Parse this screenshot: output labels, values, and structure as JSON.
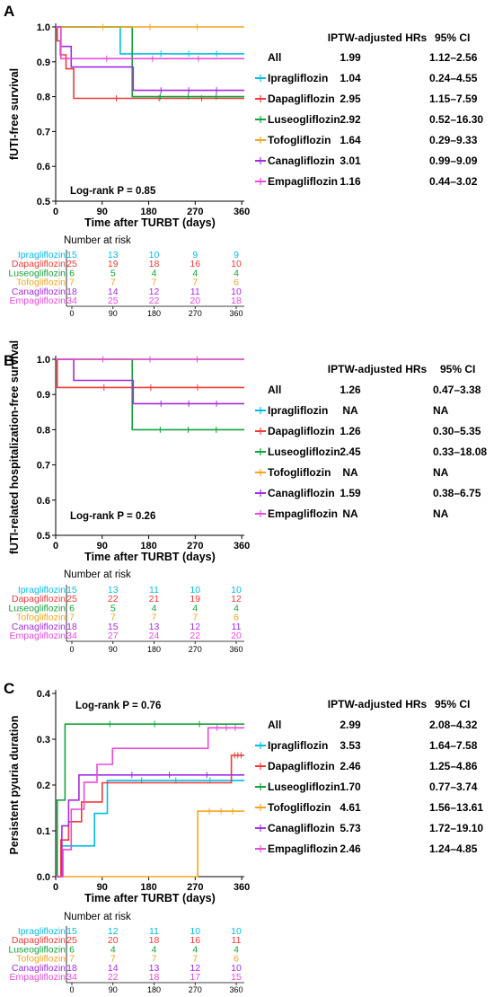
{
  "colors": {
    "Ipragliflozin": "#00bde6",
    "Dapagliflozin": "#ee3a3a",
    "Luseogliflozin": "#13a33b",
    "Tofogliflozin": "#f2a51e",
    "Canagliflozin": "#a32be0",
    "Empagliflozin": "#e84ad9"
  },
  "chart_data": [
    {
      "type": "line",
      "panel": "A",
      "ylabel": "fUTI-free survival",
      "xlabel": "Time after TURBT (days)",
      "ylim": [
        0.5,
        1.0
      ],
      "yticks": [
        "0.5",
        "0.6",
        "0.7",
        "0.8",
        "0.9",
        "1.0"
      ],
      "xlim": [
        0,
        365
      ],
      "xticks": [
        "0",
        "90",
        "180",
        "270",
        "360"
      ],
      "log_rank": "Log-rank P = 0.85",
      "series": [
        {
          "name": "Ipragliflozin",
          "x": [
            0,
            7,
            7,
            125,
            125,
            150,
            150,
            365
          ],
          "y": [
            1.0,
            1.0,
            1.0,
            1.0,
            0.923,
            0.923,
            0.923,
            0.923
          ]
        },
        {
          "name": "Dapagliflozin",
          "x": [
            0,
            3,
            3,
            9,
            9,
            20,
            20,
            35,
            35,
            365
          ],
          "y": [
            1.0,
            1.0,
            0.96,
            0.96,
            0.92,
            0.92,
            0.88,
            0.88,
            0.795,
            0.795
          ]
        },
        {
          "name": "Luseogliflozin",
          "x": [
            0,
            148,
            148,
            365
          ],
          "y": [
            1.0,
            1.0,
            0.8,
            0.8
          ]
        },
        {
          "name": "Tofogliflozin",
          "x": [
            0,
            365
          ],
          "y": [
            1.0,
            1.0
          ]
        },
        {
          "name": "Canagliflozin",
          "x": [
            0,
            10,
            10,
            30,
            30,
            150,
            150,
            365
          ],
          "y": [
            1.0,
            1.0,
            0.944,
            0.944,
            0.885,
            0.885,
            0.818,
            0.818
          ]
        },
        {
          "name": "Empagliflozin",
          "x": [
            0,
            10,
            10,
            365
          ],
          "y": [
            1.0,
            1.0,
            0.909,
            0.909
          ]
        }
      ],
      "table": {
        "headers": [
          "IPTW-adjusted HRs",
          "95% CI"
        ],
        "rows": [
          {
            "label": "All",
            "hr": "1.99",
            "ci": "1.12–2.56"
          },
          {
            "label": "Ipragliflozin",
            "hr": "1.04",
            "ci": "0.24–4.55"
          },
          {
            "label": "Dapagliflozin",
            "hr": "2.95",
            "ci": "1.15–7.59"
          },
          {
            "label": "Luseogliflozin",
            "hr": "2.92",
            "ci": "0.52–16.30"
          },
          {
            "label": "Tofogliflozin",
            "hr": "1.64",
            "ci": "0.29–9.33"
          },
          {
            "label": "Canagliflozin",
            "hr": "3.01",
            "ci": "0.99–9.09"
          },
          {
            "label": "Empagliflozin",
            "hr": "1.16",
            "ci": "0.44–3.02"
          }
        ]
      },
      "risk": {
        "title": "Number at risk",
        "times": [
          "0",
          "90",
          "180",
          "270",
          "360"
        ],
        "rows": [
          {
            "name": "Ipragliflozin",
            "values": [
              "15",
              "13",
              "10",
              "9",
              "9"
            ]
          },
          {
            "name": "Dapagliflozin",
            "values": [
              "25",
              "19",
              "18",
              "16",
              "10"
            ]
          },
          {
            "name": "Luseogliflozin",
            "values": [
              "6",
              "5",
              "4",
              "4",
              "4"
            ]
          },
          {
            "name": "Tofogliflozin",
            "values": [
              "7",
              "7",
              "7",
              "7",
              "6"
            ]
          },
          {
            "name": "Canagliflozin",
            "values": [
              "18",
              "14",
              "12",
              "11",
              "10"
            ]
          },
          {
            "name": "Empagliflozin",
            "values": [
              "34",
              "25",
              "22",
              "20",
              "18"
            ]
          }
        ]
      }
    },
    {
      "type": "line",
      "panel": "B",
      "ylabel": "fUTI-related hospitalization-free survival",
      "xlabel": "Time after TURBT (days)",
      "ylim": [
        0.5,
        1.0
      ],
      "yticks": [
        "0.5",
        "0.6",
        "0.7",
        "0.8",
        "0.9",
        "1.0"
      ],
      "xlim": [
        0,
        365
      ],
      "xticks": [
        "0",
        "90",
        "180",
        "270",
        "360"
      ],
      "log_rank": "Log-rank P = 0.26",
      "series": [
        {
          "name": "Ipragliflozin",
          "x": [
            0,
            365
          ],
          "y": [
            1.0,
            1.0
          ]
        },
        {
          "name": "Dapagliflozin",
          "x": [
            0,
            3,
            3,
            365
          ],
          "y": [
            1.0,
            1.0,
            0.92,
            0.92
          ]
        },
        {
          "name": "Luseogliflozin",
          "x": [
            0,
            148,
            148,
            365
          ],
          "y": [
            1.0,
            1.0,
            0.8,
            0.8
          ]
        },
        {
          "name": "Tofogliflozin",
          "x": [
            0,
            365
          ],
          "y": [
            1.0,
            1.0
          ]
        },
        {
          "name": "Canagliflozin",
          "x": [
            0,
            35,
            35,
            60,
            60,
            150,
            150,
            365
          ],
          "y": [
            1.0,
            1.0,
            0.94,
            0.94,
            0.94,
            0.94,
            0.874,
            0.874
          ]
        },
        {
          "name": "Empagliflozin",
          "x": [
            0,
            365
          ],
          "y": [
            1.0,
            1.0
          ]
        }
      ],
      "table": {
        "headers": [
          "IPTW-adjusted HRs",
          "95% CI"
        ],
        "rows": [
          {
            "label": "All",
            "hr": "1.26",
            "ci": "0.47–3.38"
          },
          {
            "label": "Ipragliflozin",
            "hr": "NA",
            "ci": "NA"
          },
          {
            "label": "Dapagliflozin",
            "hr": "1.26",
            "ci": "0.30–5.35"
          },
          {
            "label": "Luseogliflozin",
            "hr": "2.45",
            "ci": "0.33–18.08"
          },
          {
            "label": "Tofogliflozin",
            "hr": "NA",
            "ci": "NA"
          },
          {
            "label": "Canagliflozin",
            "hr": "1.59",
            "ci": "0.38–6.75"
          },
          {
            "label": "Empagliflozin",
            "hr": "NA",
            "ci": "NA"
          }
        ]
      },
      "risk": {
        "title": "Number at risk",
        "times": [
          "0",
          "90",
          "180",
          "270",
          "360"
        ],
        "rows": [
          {
            "name": "Ipragliflozin",
            "values": [
              "15",
              "13",
              "11",
              "10",
              "10"
            ]
          },
          {
            "name": "Dapagliflozin",
            "values": [
              "25",
              "22",
              "21",
              "19",
              "12"
            ]
          },
          {
            "name": "Luseogliflozin",
            "values": [
              "6",
              "5",
              "4",
              "4",
              "4"
            ]
          },
          {
            "name": "Tofogliflozin",
            "values": [
              "7",
              "7",
              "7",
              "7",
              "6"
            ]
          },
          {
            "name": "Canagliflozin",
            "values": [
              "18",
              "15",
              "13",
              "12",
              "11"
            ]
          },
          {
            "name": "Empagliflozin",
            "values": [
              "34",
              "27",
              "24",
              "22",
              "20"
            ]
          }
        ]
      }
    },
    {
      "type": "line",
      "panel": "C",
      "ylabel": "Persistent pyuria duration",
      "xlabel": "Time after TURBT (days)",
      "ylim": [
        0.0,
        0.4
      ],
      "yticks": [
        "0.0",
        "0.1",
        "0.2",
        "0.3",
        "0.4"
      ],
      "xlim": [
        0,
        365
      ],
      "xticks": [
        "0",
        "90",
        "180",
        "270",
        "360"
      ],
      "log_rank": "Log-rank P = 0.76",
      "series": [
        {
          "name": "Ipragliflozin",
          "x": [
            0,
            10,
            10,
            25,
            25,
            75,
            75,
            100,
            100,
            365
          ],
          "y": [
            0,
            0,
            0.067,
            0.067,
            0.067,
            0.067,
            0.138,
            0.138,
            0.21,
            0.21
          ]
        },
        {
          "name": "Dapagliflozin",
          "x": [
            0,
            10,
            10,
            25,
            25,
            50,
            50,
            90,
            90,
            125,
            125,
            340,
            340,
            365
          ],
          "y": [
            0,
            0,
            0.08,
            0.08,
            0.12,
            0.12,
            0.163,
            0.163,
            0.205,
            0.205,
            0.205,
            0.205,
            0.265,
            0.265
          ]
        },
        {
          "name": "Luseogliflozin",
          "x": [
            0,
            3,
            3,
            8,
            8,
            18,
            18,
            365
          ],
          "y": [
            0,
            0,
            0.167,
            0.167,
            0.167,
            0.167,
            0.333,
            0.333
          ]
        },
        {
          "name": "Tofogliflozin",
          "x": [
            0,
            275,
            275,
            365
          ],
          "y": [
            0,
            0,
            0.143,
            0.143
          ]
        },
        {
          "name": "Canagliflozin",
          "x": [
            0,
            12,
            12,
            25,
            25,
            45,
            45,
            75,
            75,
            365
          ],
          "y": [
            0,
            0,
            0.111,
            0.111,
            0.167,
            0.167,
            0.222,
            0.222,
            0.222,
            0.222
          ]
        },
        {
          "name": "Empagliflozin",
          "x": [
            0,
            14,
            14,
            30,
            30,
            55,
            55,
            80,
            80,
            110,
            110,
            295,
            295,
            365
          ],
          "y": [
            0,
            0,
            0.059,
            0.059,
            0.147,
            0.147,
            0.206,
            0.206,
            0.245,
            0.245,
            0.28,
            0.28,
            0.325,
            0.325
          ]
        }
      ],
      "table": {
        "headers": [
          "IPTW-adjusted HRs",
          "95% CI"
        ],
        "rows": [
          {
            "label": "All",
            "hr": "2.99",
            "ci": "2.08–4.32"
          },
          {
            "label": "Ipragliflozin",
            "hr": "3.53",
            "ci": "1.64–7.58"
          },
          {
            "label": "Dapagliflozin",
            "hr": "2.46",
            "ci": "1.25–4.86"
          },
          {
            "label": "Luseogliflozin",
            "hr": "1.70",
            "ci": "0.77–3.74"
          },
          {
            "label": "Tofogliflozin",
            "hr": "4.61",
            "ci": "1.56–13.61"
          },
          {
            "label": "Canagliflozin",
            "hr": "5.73",
            "ci": "1.72–19.10"
          },
          {
            "label": "Empagliflozin",
            "hr": "2.46",
            "ci": "1.24–4.85"
          }
        ]
      },
      "risk": {
        "title": "Number at risk",
        "times": [
          "0",
          "90",
          "180",
          "270",
          "360"
        ],
        "rows": [
          {
            "name": "Ipragliflozin",
            "values": [
              "15",
              "12",
              "11",
              "10",
              "10"
            ]
          },
          {
            "name": "Dapagliflozin",
            "values": [
              "25",
              "20",
              "18",
              "16",
              "11"
            ]
          },
          {
            "name": "Luseogliflozin",
            "values": [
              "6",
              "4",
              "4",
              "4",
              "4"
            ]
          },
          {
            "name": "Tofogliflozin",
            "values": [
              "7",
              "7",
              "7",
              "7",
              "6"
            ]
          },
          {
            "name": "Canagliflozin",
            "values": [
              "18",
              "14",
              "13",
              "12",
              "10"
            ]
          },
          {
            "name": "Empagliflozin",
            "values": [
              "34",
              "22",
              "18",
              "17",
              "15"
            ]
          }
        ]
      }
    }
  ]
}
